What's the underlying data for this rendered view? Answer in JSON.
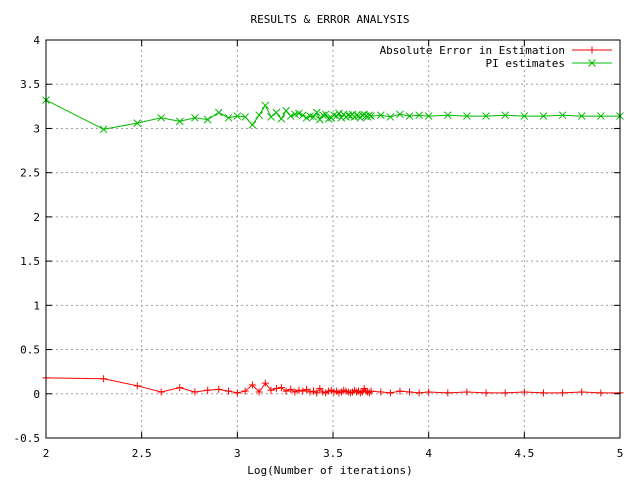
{
  "chart_data": {
    "type": "line",
    "title": "RESULTS & ERROR ANALYSIS",
    "xlabel": "Log(Number of iterations)",
    "ylabel": "",
    "xlim": [
      2,
      5
    ],
    "ylim": [
      -0.5,
      4
    ],
    "x_ticks": [
      "2",
      "2.5",
      "3",
      "3.5",
      "4",
      "4.5",
      "5"
    ],
    "y_ticks": [
      "-0.5",
      "0",
      "0.5",
      "1",
      "1.5",
      "2",
      "2.5",
      "3",
      "3.5",
      "4"
    ],
    "grid": true,
    "legend_position": "top-right",
    "series": [
      {
        "name": "Absolute Error in Estimation",
        "color": "#ff0000",
        "marker": "plus",
        "x": [
          2.0,
          2.301,
          2.477,
          2.602,
          2.699,
          2.778,
          2.845,
          2.903,
          2.954,
          3.0,
          3.041,
          3.079,
          3.114,
          3.146,
          3.176,
          3.204,
          3.23,
          3.255,
          3.279,
          3.301,
          3.322,
          3.342,
          3.362,
          3.38,
          3.398,
          3.415,
          3.431,
          3.447,
          3.462,
          3.477,
          3.491,
          3.505,
          3.519,
          3.531,
          3.544,
          3.556,
          3.568,
          3.58,
          3.591,
          3.602,
          3.613,
          3.623,
          3.633,
          3.643,
          3.653,
          3.663,
          3.672,
          3.681,
          3.69,
          3.699,
          3.75,
          3.8,
          3.85,
          3.9,
          3.95,
          4.0,
          4.1,
          4.2,
          4.3,
          4.4,
          4.5,
          4.6,
          4.7,
          4.8,
          4.9,
          5.0
        ],
        "values": [
          0.18,
          0.17,
          0.09,
          0.02,
          0.07,
          0.02,
          0.04,
          0.05,
          0.03,
          0.01,
          0.03,
          0.1,
          0.02,
          0.12,
          0.04,
          0.06,
          0.07,
          0.03,
          0.05,
          0.02,
          0.04,
          0.03,
          0.05,
          0.02,
          0.03,
          0.01,
          0.06,
          0.02,
          0.01,
          0.03,
          0.04,
          0.02,
          0.03,
          0.01,
          0.02,
          0.04,
          0.03,
          0.02,
          0.01,
          0.02,
          0.04,
          0.02,
          0.03,
          0.01,
          0.02,
          0.06,
          0.03,
          0.02,
          0.01,
          0.03,
          0.02,
          0.01,
          0.03,
          0.02,
          0.01,
          0.02,
          0.01,
          0.02,
          0.01,
          0.01,
          0.02,
          0.01,
          0.01,
          0.02,
          0.01,
          0.01
        ]
      },
      {
        "name": "PI estimates",
        "color": "#00bb00",
        "marker": "cross",
        "x": [
          2.0,
          2.301,
          2.477,
          2.602,
          2.699,
          2.778,
          2.845,
          2.903,
          2.954,
          3.0,
          3.041,
          3.079,
          3.114,
          3.146,
          3.176,
          3.204,
          3.23,
          3.255,
          3.279,
          3.301,
          3.322,
          3.342,
          3.362,
          3.38,
          3.398,
          3.415,
          3.431,
          3.447,
          3.462,
          3.477,
          3.491,
          3.505,
          3.519,
          3.531,
          3.544,
          3.556,
          3.568,
          3.58,
          3.591,
          3.602,
          3.613,
          3.623,
          3.633,
          3.643,
          3.653,
          3.663,
          3.672,
          3.681,
          3.69,
          3.699,
          3.75,
          3.8,
          3.85,
          3.9,
          3.95,
          4.0,
          4.1,
          4.2,
          4.3,
          4.4,
          4.5,
          4.6,
          4.7,
          4.8,
          4.9,
          5.0
        ],
        "values": [
          3.32,
          2.99,
          3.06,
          3.12,
          3.08,
          3.12,
          3.1,
          3.18,
          3.12,
          3.14,
          3.13,
          3.04,
          3.15,
          3.26,
          3.13,
          3.18,
          3.11,
          3.2,
          3.14,
          3.16,
          3.17,
          3.15,
          3.12,
          3.14,
          3.13,
          3.18,
          3.1,
          3.15,
          3.16,
          3.11,
          3.12,
          3.15,
          3.14,
          3.17,
          3.12,
          3.16,
          3.13,
          3.15,
          3.14,
          3.16,
          3.13,
          3.15,
          3.14,
          3.12,
          3.15,
          3.16,
          3.14,
          3.13,
          3.15,
          3.14,
          3.15,
          3.13,
          3.16,
          3.14,
          3.15,
          3.14,
          3.15,
          3.14,
          3.14,
          3.15,
          3.14,
          3.14,
          3.15,
          3.14,
          3.14,
          3.14
        ]
      }
    ]
  }
}
